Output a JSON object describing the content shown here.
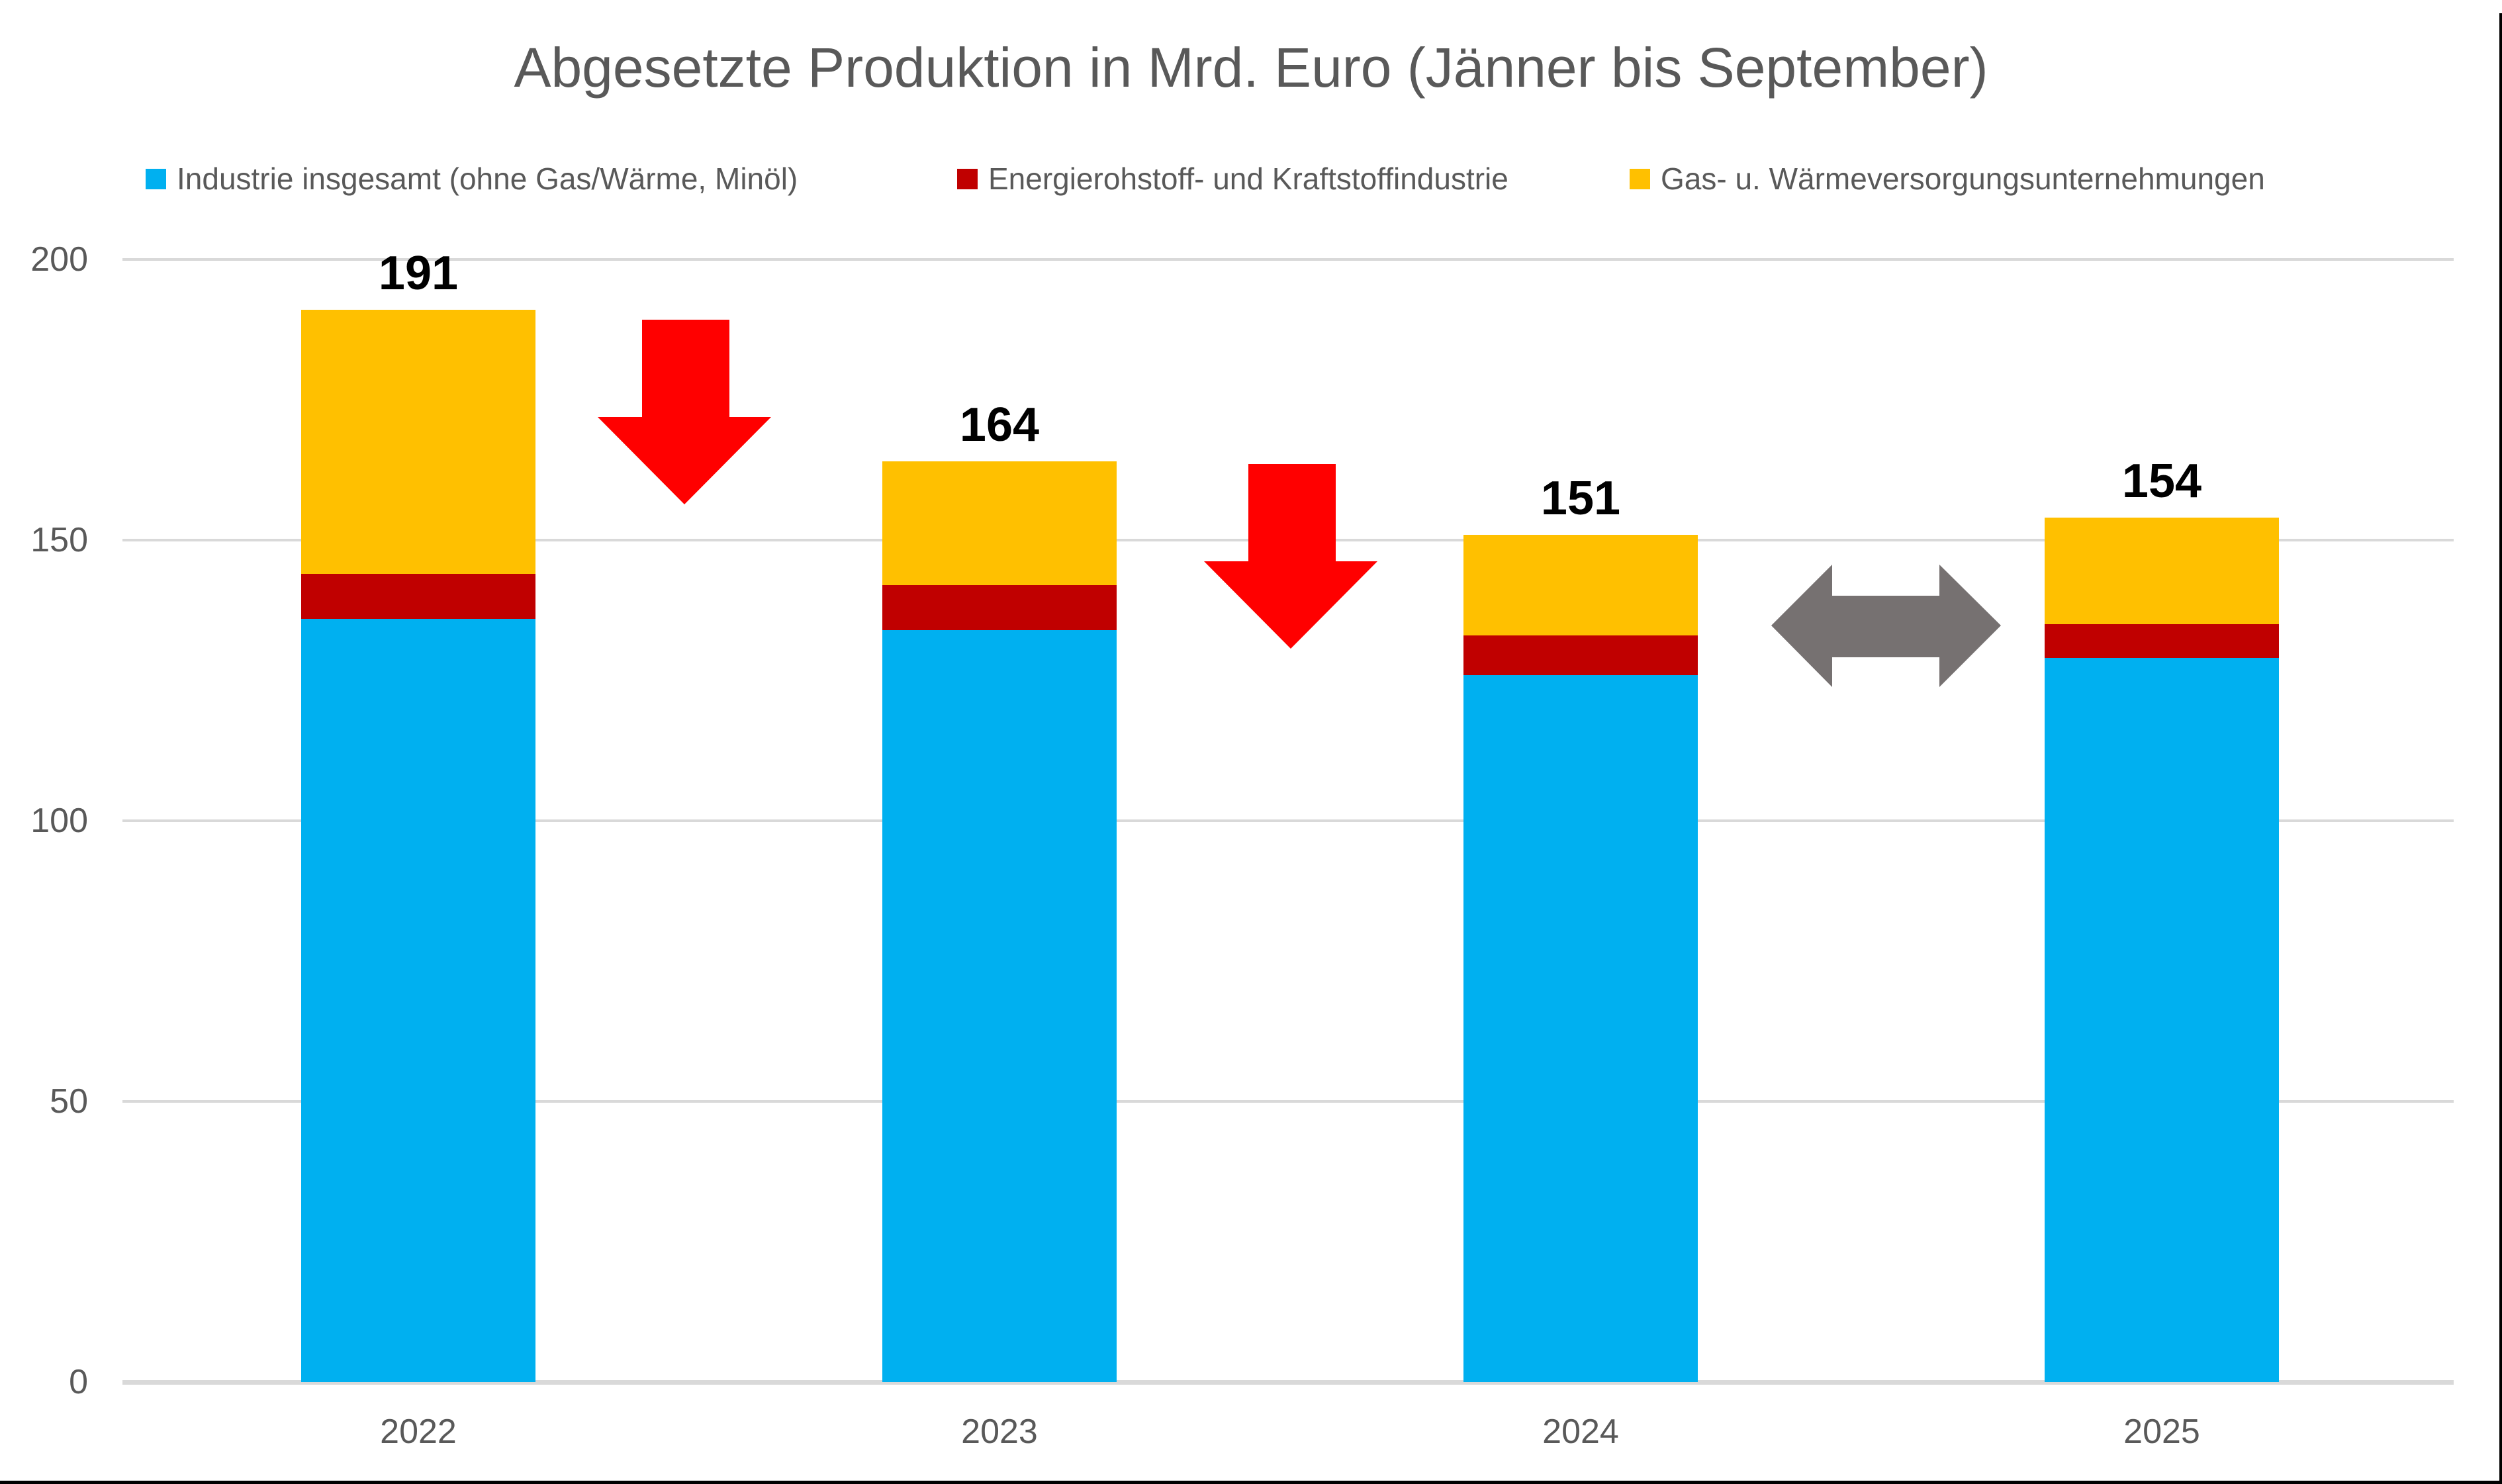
{
  "title": "Abgesetzte Produktion in Mrd. Euro (Jänner bis September)",
  "chart_data": {
    "type": "bar",
    "stacked": true,
    "title": "Abgesetzte Produktion in Mrd. Euro (Jänner bis September)",
    "categories": [
      "2022",
      "2023",
      "2024",
      "2025"
    ],
    "series": [
      {
        "name": "Industrie insgesamt (ohne Gas/Wärme, Minöl)",
        "color": "#00B0F0",
        "values": [
          136,
          134,
          126,
          129
        ]
      },
      {
        "name": "Energierohstoff- und Kraftstoffindustrie",
        "color": "#C00000",
        "values": [
          8,
          8,
          7,
          6
        ]
      },
      {
        "name": "Gas- u. Wärmeversorgungsunternehmungen",
        "color": "#FFC000",
        "values": [
          47,
          22,
          18,
          19
        ]
      }
    ],
    "totals": [
      191,
      164,
      151,
      154
    ],
    "xlabel": "",
    "ylabel": "",
    "ylim": [
      0,
      200
    ],
    "yticks": [
      0,
      50,
      100,
      150,
      200
    ],
    "grid": true,
    "legend_position": "top",
    "annotations": [
      {
        "type": "block-arrow-down",
        "color": "#FF0000",
        "between": [
          "2022",
          "2023"
        ]
      },
      {
        "type": "block-arrow-down",
        "color": "#FF0000",
        "between": [
          "2023",
          "2024"
        ]
      },
      {
        "type": "block-arrow-left-right",
        "color": "#767171",
        "between": [
          "2024",
          "2025"
        ]
      }
    ]
  },
  "colors": {
    "background": "#FFFFFF",
    "gridline": "#D9D9D9",
    "axis_text": "#595959",
    "title_text": "#595959",
    "value_label": "#000000",
    "border": "#000000"
  }
}
